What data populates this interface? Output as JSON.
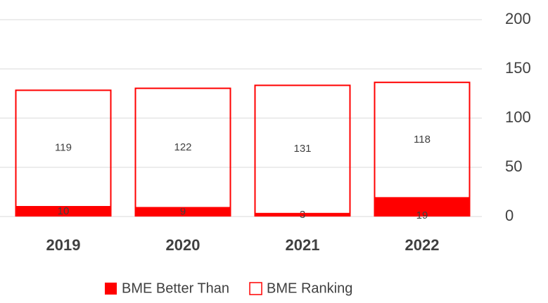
{
  "chart_data": {
    "type": "bar",
    "stacked": true,
    "categories": [
      "2019",
      "2020",
      "2021",
      "2022"
    ],
    "series": [
      {
        "name": "BME Better Than",
        "color": "#ff0000",
        "fill": "solid",
        "values": [
          10,
          9,
          3,
          19
        ]
      },
      {
        "name": "BME Ranking",
        "color": "#ff0000",
        "fill": "none",
        "values": [
          119,
          122,
          131,
          118
        ]
      }
    ],
    "ylim": [
      0,
      200
    ],
    "yticks": [
      0,
      50,
      100,
      150,
      200
    ],
    "grid": true,
    "y_axis_side": "right",
    "legend": "bottom"
  }
}
